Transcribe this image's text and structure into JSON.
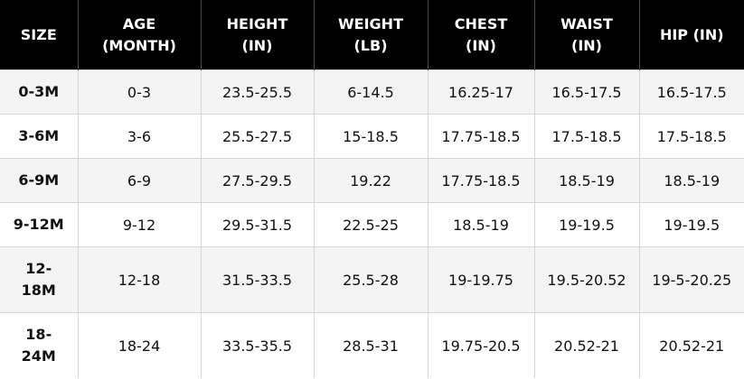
{
  "table": {
    "headers": [
      [
        "SIZE"
      ],
      [
        "AGE",
        "(MONTH)"
      ],
      [
        "HEIGHT",
        "(IN)"
      ],
      [
        "WEIGHT",
        "(LB)"
      ],
      [
        "CHEST",
        "(IN)"
      ],
      [
        "WAIST",
        "(IN)"
      ],
      [
        "HIP (IN)"
      ]
    ],
    "rows": [
      [
        "0-3M",
        "0-3",
        "23.5-25.5",
        "6-14.5",
        "16.25-17",
        "16.5-17.5",
        "16.5-17.5"
      ],
      [
        "3-6M",
        "3-6",
        "25.5-27.5",
        "15-18.5",
        "17.75-18.5",
        "17.5-18.5",
        "17.5-18.5"
      ],
      [
        "6-9M",
        "6-9",
        "27.5-29.5",
        "19.22",
        "17.75-18.5",
        "18.5-19",
        "18.5-19"
      ],
      [
        "9-12M",
        "9-12",
        "29.5-31.5",
        "22.5-25",
        "18.5-19",
        "19-19.5",
        "19-19.5"
      ],
      [
        [
          "12-",
          "18M"
        ],
        "12-18",
        "31.5-33.5",
        "25.5-28",
        "19-19.75",
        "19.5-20.52",
        "19-5-20.25"
      ],
      [
        [
          "18-",
          "24M"
        ],
        "18-24",
        "33.5-35.5",
        "28.5-31",
        "19.75-20.5",
        "20.52-21",
        "20.52-21"
      ]
    ]
  }
}
